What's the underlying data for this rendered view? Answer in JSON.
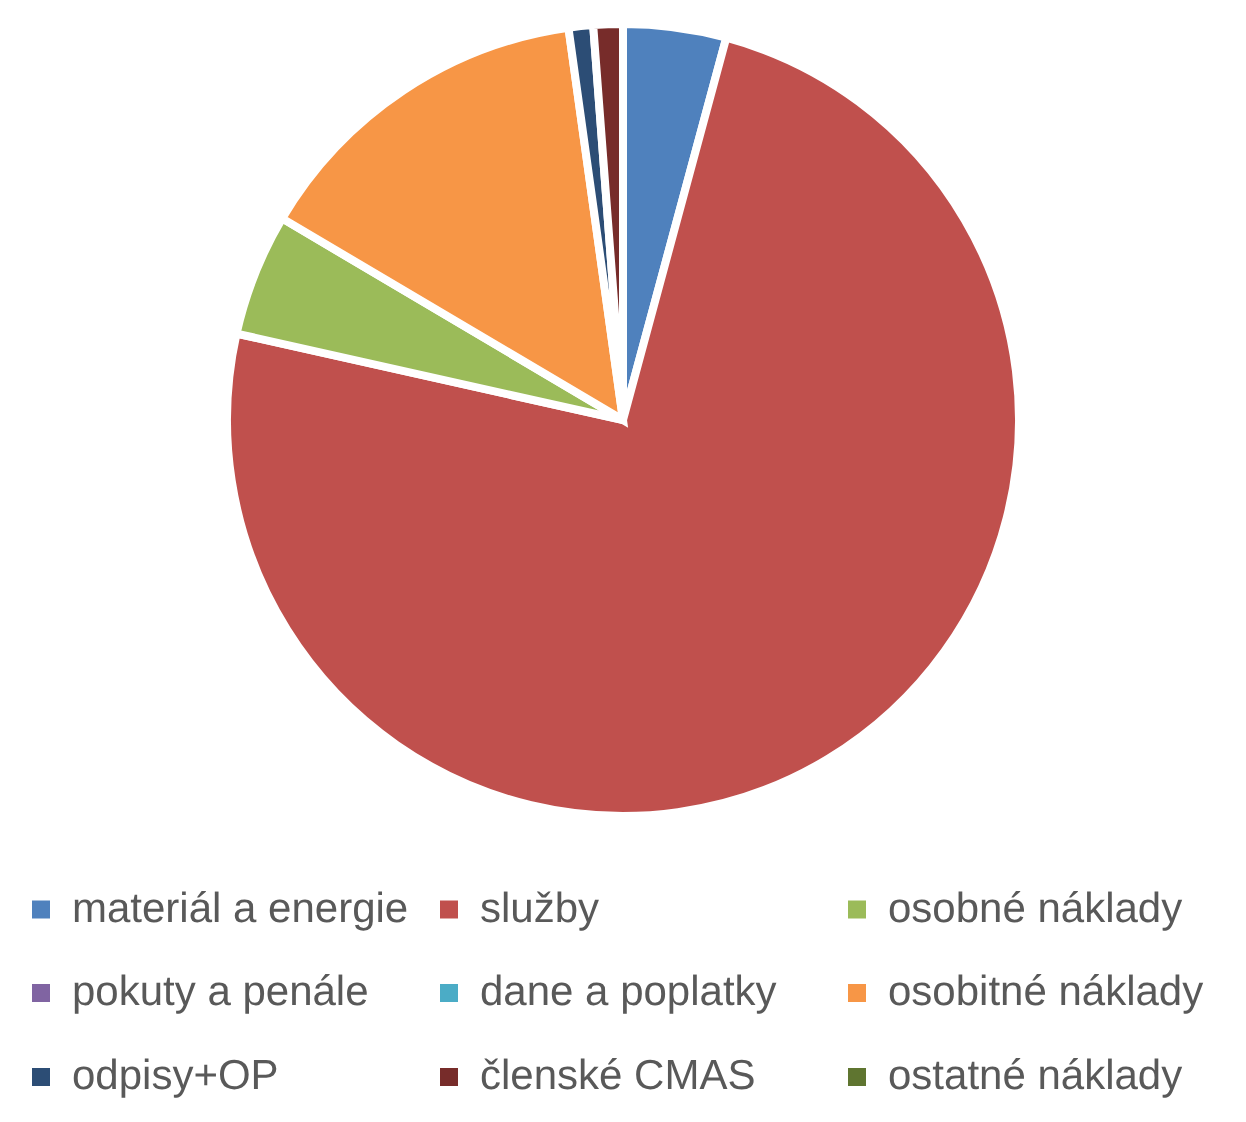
{
  "chart_data": {
    "type": "pie",
    "categories": [
      "materiál a energie",
      "služby",
      "osobné náklady",
      "pokuty a penále",
      "dane a poplatky",
      "osobitné náklady",
      "odpisy+OP",
      "členské CMAS",
      "ostatné náklady"
    ],
    "values": [
      4.2,
      74.3,
      5.0,
      0,
      0,
      14.3,
      1.0,
      1.2,
      0
    ],
    "colors": [
      "#4f81bd",
      "#c0504d",
      "#9bbb59",
      "#8064a2",
      "#4bacc6",
      "#f79646",
      "#2c4d75",
      "#772c2a",
      "#5f7530"
    ],
    "legend": "bottom"
  }
}
